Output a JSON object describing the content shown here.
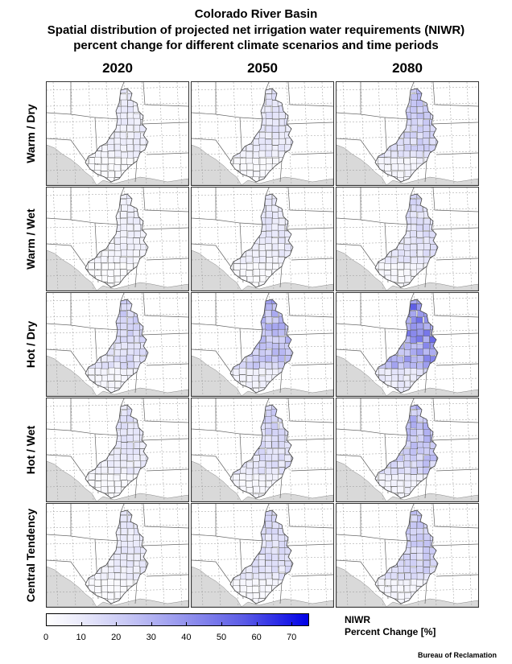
{
  "title_lines": [
    "Colorado River Basin",
    "Spatial distribution of projected net irrigation water requirements (NIWR)",
    "percent change for different climate scenarios and time periods"
  ],
  "columns": [
    "2020",
    "2050",
    "2080"
  ],
  "rows": [
    "Warm / Dry",
    "Warm / Wet",
    "Hot / Dry",
    "Hot / Wet",
    "Central Tendency"
  ],
  "colorbar": {
    "label_line1": "NIWR",
    "label_line2": "Percent Change [%]",
    "min": 0,
    "max": 75,
    "ticks": [
      "0",
      "10",
      "20",
      "30",
      "40",
      "50",
      "60",
      "70"
    ],
    "colors": [
      "#ffffff",
      "#0000e6"
    ]
  },
  "panel_intensity": [
    [
      0.15,
      0.2,
      0.35
    ],
    [
      0.12,
      0.18,
      0.25
    ],
    [
      0.3,
      0.45,
      0.7
    ],
    [
      0.2,
      0.28,
      0.42
    ],
    [
      0.18,
      0.25,
      0.33
    ]
  ],
  "credit": "Bureau of Reclamation"
}
